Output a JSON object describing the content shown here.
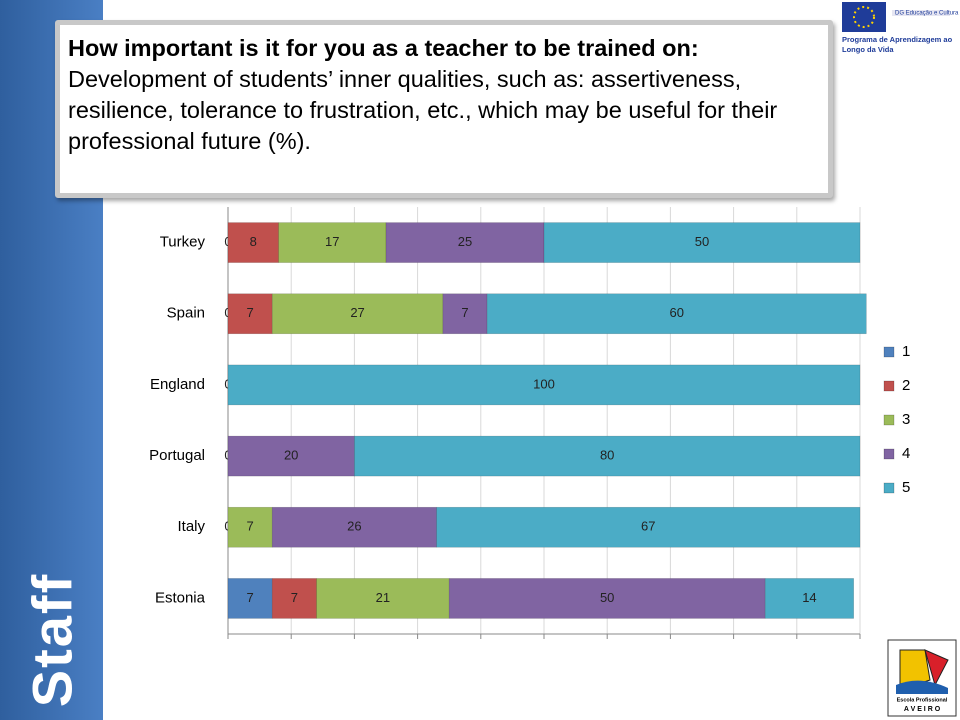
{
  "sidebar_label": "Staff",
  "logos": {
    "eu_line1": "DG Educação e Cultura",
    "eu_line2": "Programa de Aprendizagem ao",
    "eu_line3": "Longo da Vida",
    "school_line1": "Escola Profissional",
    "school_line2": "A V E I R O"
  },
  "chart_data": {
    "type": "stacked_bar_horizontal",
    "title_bold": "How important is it for you as a teacher to be trained on:",
    "title": "Development of students’ inner qualities, such as: assertiveness, resilience, tolerance to frustration, etc., which may be useful for their professional future (%).",
    "categories": [
      "Turkey",
      "Spain",
      "England",
      "Portugal",
      "Italy",
      "Estonia"
    ],
    "series": [
      {
        "name": "1",
        "color": "#4f81bd",
        "values": [
          0,
          0,
          0,
          0,
          0,
          7
        ]
      },
      {
        "name": "2",
        "color": "#c0504d",
        "values": [
          8,
          7,
          null,
          null,
          null,
          7
        ]
      },
      {
        "name": "3",
        "color": "#9bbb59",
        "values": [
          17,
          27,
          null,
          null,
          7,
          21
        ]
      },
      {
        "name": "4",
        "color": "#8064a2",
        "values": [
          25,
          7,
          null,
          20,
          26,
          50
        ]
      },
      {
        "name": "5",
        "color": "#4bacc6",
        "values": [
          50,
          60,
          100,
          80,
          67,
          14
        ]
      }
    ],
    "xlim": [
      0,
      100
    ],
    "xticks": [
      0,
      10,
      20,
      30,
      40,
      50,
      60,
      70,
      80,
      90,
      100
    ],
    "grid": true,
    "legend": "right"
  }
}
